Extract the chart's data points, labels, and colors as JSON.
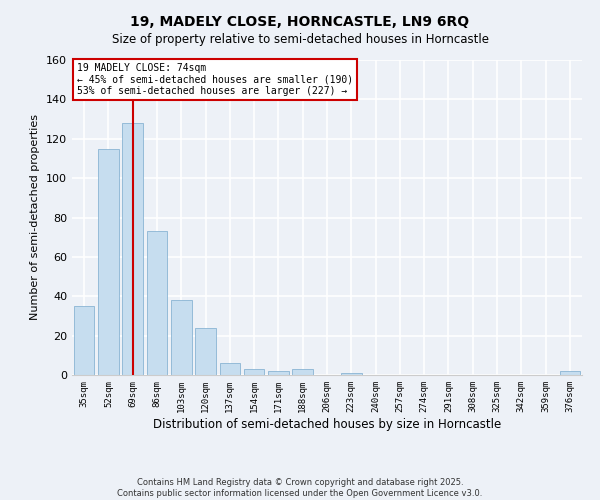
{
  "title1": "19, MADELY CLOSE, HORNCASTLE, LN9 6RQ",
  "title2": "Size of property relative to semi-detached houses in Horncastle",
  "xlabel": "Distribution of semi-detached houses by size in Horncastle",
  "ylabel": "Number of semi-detached properties",
  "categories": [
    "35sqm",
    "52sqm",
    "69sqm",
    "86sqm",
    "103sqm",
    "120sqm",
    "137sqm",
    "154sqm",
    "171sqm",
    "188sqm",
    "206sqm",
    "223sqm",
    "240sqm",
    "257sqm",
    "274sqm",
    "291sqm",
    "308sqm",
    "325sqm",
    "342sqm",
    "359sqm",
    "376sqm"
  ],
  "values": [
    35,
    115,
    128,
    73,
    38,
    24,
    6,
    3,
    2,
    3,
    0,
    1,
    0,
    0,
    0,
    0,
    0,
    0,
    0,
    0,
    2
  ],
  "bar_color": "#c6ddef",
  "bar_edge_color": "#8ab4d4",
  "vline_x": 2,
  "vline_color": "#cc0000",
  "annotation_title": "19 MADELY CLOSE: 74sqm",
  "annotation_line1": "← 45% of semi-detached houses are smaller (190)",
  "annotation_line2": "53% of semi-detached houses are larger (227) →",
  "annotation_box_color": "#ffffff",
  "annotation_box_edge": "#cc0000",
  "ylim": [
    0,
    160
  ],
  "yticks": [
    0,
    20,
    40,
    60,
    80,
    100,
    120,
    140,
    160
  ],
  "footnote1": "Contains HM Land Registry data © Crown copyright and database right 2025.",
  "footnote2": "Contains public sector information licensed under the Open Government Licence v3.0.",
  "background_color": "#edf1f7"
}
